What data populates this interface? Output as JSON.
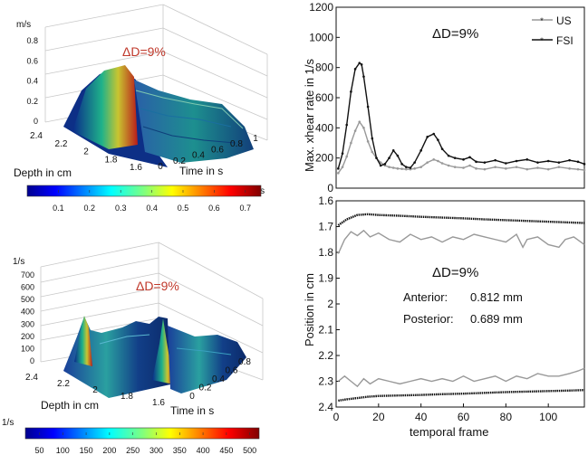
{
  "chart_data": [
    {
      "type": "surface3d",
      "unit": "m/s",
      "annotation": "ΔD=9%",
      "xlabel": "Time in s",
      "ylabel": "Depth in cm",
      "zticks": [
        "0",
        "0.2",
        "0.4",
        "0.6",
        "0.8"
      ],
      "time_ticks": [
        "0",
        "0.2",
        "0.4",
        "0.6",
        "0.8",
        "1"
      ],
      "depth_ticks": [
        "2.4",
        "2.2",
        "2",
        "1.8",
        "1.6"
      ],
      "colorbar": {
        "unit": "m/s",
        "ticks": [
          "0.1",
          "0.2",
          "0.3",
          "0.4",
          "0.5",
          "0.6",
          "0.7"
        ],
        "min": 0,
        "max": 0.75
      }
    },
    {
      "type": "surface3d",
      "unit": "1/s",
      "annotation": "ΔD=9%",
      "xlabel": "Time in s",
      "ylabel": "Depth in cm",
      "zticks": [
        "0",
        "100",
        "200",
        "300",
        "400",
        "500",
        "600",
        "700"
      ],
      "time_ticks": [
        "0",
        "0.2",
        "0.4",
        "0.6",
        "0.8"
      ],
      "depth_ticks": [
        "2.4",
        "2.2",
        "2",
        "1.8",
        "1.6"
      ],
      "colorbar": {
        "unit": "1/s",
        "ticks": [
          "50",
          "100",
          "150",
          "200",
          "250",
          "300",
          "350",
          "400",
          "450",
          "500"
        ],
        "min": 20,
        "max": 520
      }
    },
    {
      "type": "line",
      "annotation": "ΔD=9%",
      "ylabel": "Max. xhear rate in 1/s",
      "ylim": [
        0,
        1200
      ],
      "xlim": [
        0,
        117
      ],
      "yticks": [
        "0",
        "200",
        "400",
        "600",
        "800",
        "1000",
        "1200"
      ],
      "legend": {
        "position": "top-right",
        "entries": [
          "US",
          "FSI"
        ]
      },
      "series": [
        {
          "name": "US",
          "x": [
            1,
            3,
            5,
            7,
            9,
            11,
            13,
            15,
            17,
            19,
            21,
            23,
            25,
            27,
            29,
            31,
            33,
            35,
            37,
            40,
            43,
            46,
            48,
            50,
            53,
            56,
            60,
            63,
            66,
            70,
            75,
            80,
            85,
            90,
            95,
            100,
            105,
            110,
            114,
            117
          ],
          "y": [
            100,
            140,
            210,
            300,
            380,
            440,
            400,
            310,
            240,
            200,
            170,
            150,
            140,
            135,
            130,
            128,
            125,
            125,
            130,
            140,
            170,
            190,
            180,
            165,
            150,
            140,
            135,
            150,
            130,
            125,
            140,
            130,
            140,
            125,
            135,
            125,
            140,
            130,
            125,
            120
          ]
        },
        {
          "name": "FSI",
          "x": [
            1,
            3,
            5,
            7,
            9,
            11,
            12,
            13,
            15,
            17,
            19,
            21,
            23,
            25,
            27,
            29,
            31,
            33,
            35,
            37,
            40,
            43,
            46,
            48,
            50,
            53,
            56,
            60,
            63,
            66,
            70,
            75,
            80,
            85,
            90,
            95,
            100,
            105,
            110,
            114,
            117
          ],
          "y": [
            130,
            230,
            420,
            640,
            790,
            830,
            820,
            740,
            540,
            330,
            200,
            150,
            160,
            200,
            250,
            215,
            160,
            140,
            135,
            170,
            250,
            340,
            360,
            320,
            260,
            215,
            200,
            190,
            205,
            175,
            170,
            185,
            165,
            180,
            190,
            170,
            180,
            170,
            185,
            175,
            160
          ]
        }
      ]
    },
    {
      "type": "line",
      "annotation": "ΔD=9%",
      "ylabel": "Position in cm",
      "xlabel": "temporal frame",
      "ylim": [
        1.6,
        2.4
      ],
      "y_inverted": true,
      "xlim": [
        0,
        117
      ],
      "xticks": [
        "0",
        "20",
        "40",
        "60",
        "80",
        "100"
      ],
      "yticks": [
        "1.6",
        "1.7",
        "1.8",
        "1.9",
        "2",
        "2.1",
        "2.2",
        "2.3",
        "2.4"
      ],
      "text_lines": [
        {
          "label": "Anterior:",
          "value": "0.812 mm"
        },
        {
          "label": "Posterior:",
          "value": "0.689 mm"
        }
      ],
      "series": [
        {
          "x": [
            1,
            5,
            10,
            15,
            20,
            30,
            40,
            50,
            60,
            70,
            80,
            90,
            100,
            110,
            117
          ],
          "y": [
            1.695,
            1.672,
            1.655,
            1.652,
            1.655,
            1.658,
            1.662,
            1.665,
            1.668,
            1.672,
            1.675,
            1.678,
            1.681,
            1.684,
            1.686
          ]
        },
        {
          "x": [
            1,
            4,
            7,
            10,
            13,
            16,
            20,
            25,
            30,
            35,
            40,
            45,
            50,
            55,
            60,
            65,
            70,
            75,
            80,
            85,
            88,
            90,
            95,
            100,
            105,
            108,
            112,
            117
          ],
          "y": [
            1.805,
            1.75,
            1.72,
            1.735,
            1.715,
            1.74,
            1.725,
            1.75,
            1.76,
            1.73,
            1.75,
            1.74,
            1.76,
            1.74,
            1.75,
            1.73,
            1.74,
            1.75,
            1.76,
            1.73,
            1.78,
            1.75,
            1.74,
            1.77,
            1.78,
            1.75,
            1.74,
            1.77
          ]
        },
        {
          "x": [
            1,
            4,
            7,
            10,
            13,
            16,
            20,
            25,
            30,
            35,
            40,
            45,
            50,
            55,
            60,
            65,
            70,
            75,
            80,
            85,
            90,
            95,
            100,
            105,
            110,
            114,
            117
          ],
          "y": [
            2.3,
            2.28,
            2.3,
            2.32,
            2.29,
            2.31,
            2.29,
            2.3,
            2.31,
            2.3,
            2.29,
            2.3,
            2.29,
            2.3,
            2.28,
            2.3,
            2.29,
            2.28,
            2.3,
            2.28,
            2.29,
            2.27,
            2.28,
            2.28,
            2.27,
            2.26,
            2.25
          ]
        },
        {
          "x": [
            1,
            5,
            10,
            15,
            20,
            30,
            40,
            50,
            60,
            70,
            80,
            90,
            100,
            110,
            117
          ],
          "y": [
            2.375,
            2.37,
            2.365,
            2.36,
            2.357,
            2.355,
            2.353,
            2.35,
            2.348,
            2.345,
            2.342,
            2.34,
            2.338,
            2.336,
            2.334
          ]
        }
      ]
    }
  ]
}
